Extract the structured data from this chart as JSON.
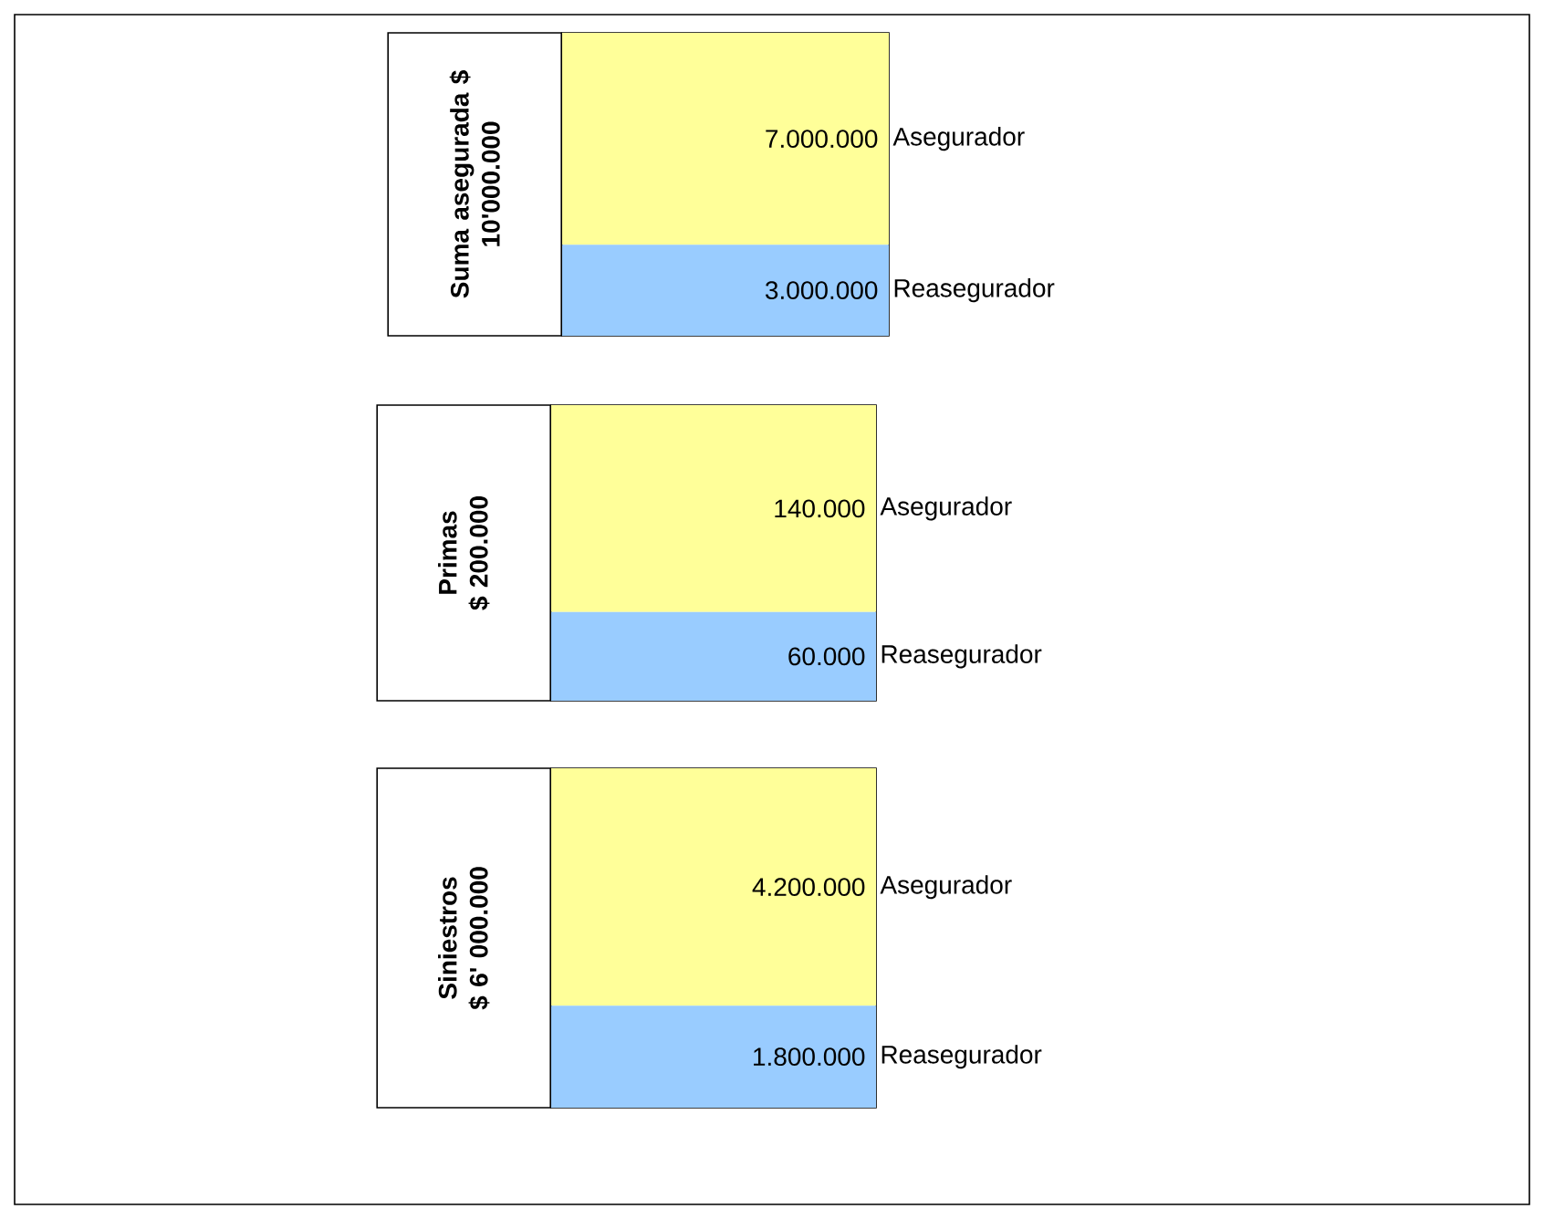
{
  "chart_data": [
    {
      "type": "bar",
      "stacked": true,
      "title": "Suma asegurada $",
      "subtitle": "10'000.000",
      "categories": [
        null
      ],
      "tick_labels": false,
      "series": [
        {
          "name": "Reasegurador",
          "color": "#99ccff",
          "values": [
            3000000
          ],
          "value_labels": [
            "3.000.000"
          ]
        },
        {
          "name": "Asegurador",
          "color": "#ffff99",
          "values": [
            7000000
          ],
          "value_labels": [
            "7.000.000"
          ]
        }
      ]
    },
    {
      "type": "bar",
      "stacked": true,
      "title": "Primas",
      "subtitle": "$ 200.000",
      "categories": [
        null
      ],
      "tick_labels": false,
      "series": [
        {
          "name": "Reasegurador",
          "color": "#99ccff",
          "values": [
            60000
          ],
          "value_labels": [
            "60.000"
          ]
        },
        {
          "name": "Asegurador",
          "color": "#ffff99",
          "values": [
            140000
          ],
          "value_labels": [
            "140.000"
          ]
        }
      ]
    },
    {
      "type": "bar",
      "stacked": true,
      "title": "Siniestros",
      "subtitle": "$ 6' 000.000",
      "categories": [
        null
      ],
      "tick_labels": false,
      "series": [
        {
          "name": "Reasegurador",
          "color": "#99ccff",
          "values": [
            1800000
          ],
          "value_labels": [
            "1.800.000"
          ]
        },
        {
          "name": "Asegurador",
          "color": "#ffff99",
          "values": [
            4200000
          ],
          "value_labels": [
            "4.200.000"
          ]
        }
      ]
    }
  ]
}
